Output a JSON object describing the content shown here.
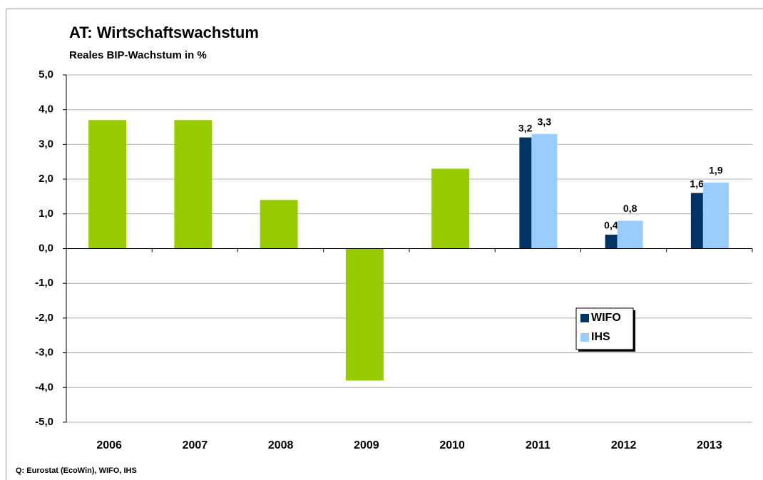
{
  "chart_data": {
    "type": "bar",
    "title": "AT: Wirtschaftswachstum",
    "subtitle": "Reales BIP-Wachstum in %",
    "source": "Q: Eurostat (EcoWin), WIFO, IHS",
    "categories": [
      "2006",
      "2007",
      "2008",
      "2009",
      "2010",
      "2011",
      "2012",
      "2013"
    ],
    "series": [
      {
        "color": "#99cc00",
        "values": [
          3.7,
          3.7,
          1.4,
          -3.8,
          2.3,
          null,
          null,
          null
        ]
      },
      {
        "name": "WIFO",
        "color": "#003366",
        "values": [
          null,
          null,
          null,
          null,
          null,
          3.2,
          0.4,
          1.6
        ],
        "value_labels": [
          null,
          null,
          null,
          null,
          null,
          "3,2",
          "0,4",
          "1,6"
        ]
      },
      {
        "name": "IHS",
        "color": "#99ccff",
        "values": [
          null,
          null,
          null,
          null,
          null,
          3.3,
          0.8,
          1.9
        ],
        "value_labels": [
          null,
          null,
          null,
          null,
          null,
          "3,3",
          "0,8",
          "1,9"
        ]
      }
    ],
    "ylim": [
      -5,
      5
    ],
    "yticks": [
      {
        "value": -5,
        "label": "-5,0"
      },
      {
        "value": -4,
        "label": "-4,0"
      },
      {
        "value": -3,
        "label": "-3,0"
      },
      {
        "value": -2,
        "label": "-2,0"
      },
      {
        "value": -1,
        "label": "-1,0"
      },
      {
        "value": 0,
        "label": "0,0"
      },
      {
        "value": 1,
        "label": "1,0"
      },
      {
        "value": 2,
        "label": "2,0"
      },
      {
        "value": 3,
        "label": "3,0"
      },
      {
        "value": 4,
        "label": "4,0"
      },
      {
        "value": 5,
        "label": "5,0"
      }
    ],
    "grid": true
  }
}
